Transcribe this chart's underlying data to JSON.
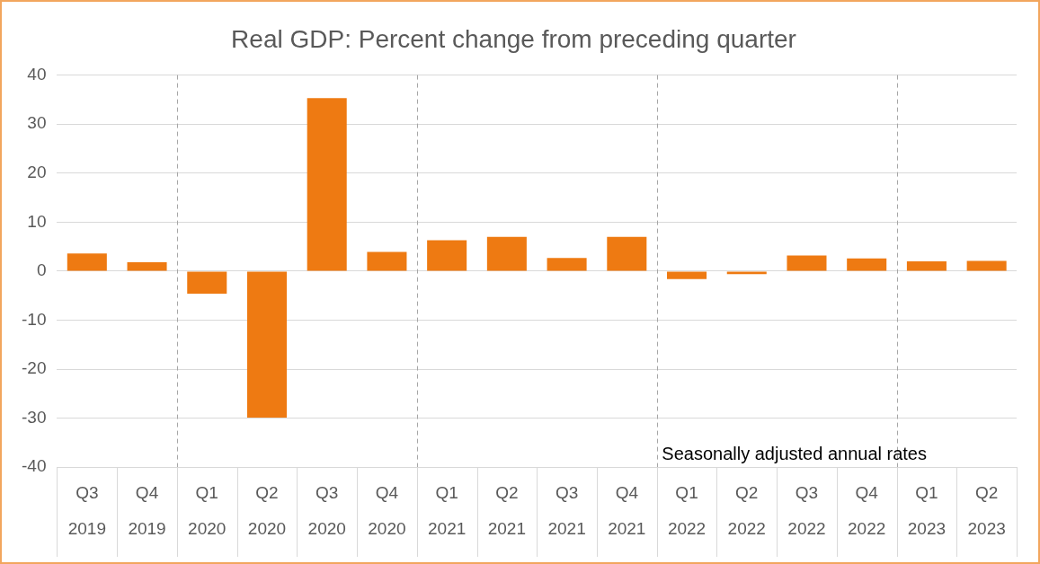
{
  "chart_data": {
    "type": "bar",
    "title": "Real GDP: Percent change from preceding quarter",
    "categories": [
      "Q3 2019",
      "Q4 2019",
      "Q1 2020",
      "Q2 2020",
      "Q3 2020",
      "Q4 2020",
      "Q1 2021",
      "Q2 2021",
      "Q3 2021",
      "Q4 2021",
      "Q1 2022",
      "Q2 2022",
      "Q3 2022",
      "Q4 2022",
      "Q1 2023",
      "Q2 2023"
    ],
    "values": [
      3.6,
      1.8,
      -4.6,
      -29.9,
      35.3,
      3.9,
      6.3,
      7.0,
      2.7,
      7.0,
      -1.6,
      -0.6,
      3.2,
      2.6,
      2.0,
      2.1
    ],
    "color": "#ee7a12",
    "ylim": [
      -40,
      40
    ],
    "yticks": [
      -40,
      -30,
      -20,
      -10,
      0,
      10,
      20,
      30,
      40
    ],
    "grid": "y",
    "legend": false,
    "annotations": [
      "Seasonally adjusted annual rates"
    ]
  }
}
